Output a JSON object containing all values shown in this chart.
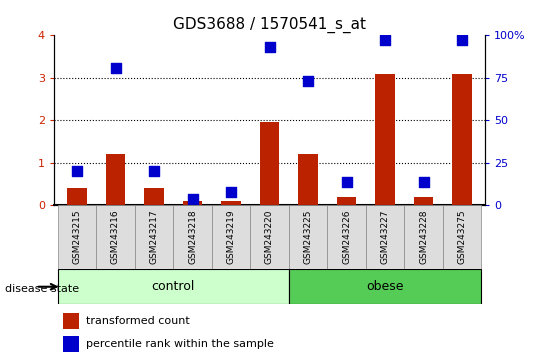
{
  "title": "GDS3688 / 1570541_s_at",
  "samples": [
    "GSM243215",
    "GSM243216",
    "GSM243217",
    "GSM243218",
    "GSM243219",
    "GSM243220",
    "GSM243225",
    "GSM243226",
    "GSM243227",
    "GSM243228",
    "GSM243275"
  ],
  "transformed_count": [
    0.4,
    1.2,
    0.4,
    0.1,
    0.1,
    1.95,
    1.2,
    0.2,
    3.1,
    0.2,
    3.1
  ],
  "percentile_rank_raw": [
    20,
    81,
    20,
    4,
    8,
    93,
    73,
    14,
    97,
    14,
    97
  ],
  "bar_color": "#bb2200",
  "dot_color": "#0000cc",
  "groups": [
    {
      "label": "control",
      "start": 0,
      "end": 6,
      "color": "#ccffcc"
    },
    {
      "label": "obese",
      "start": 6,
      "end": 11,
      "color": "#55cc55"
    }
  ],
  "ylim_left": [
    0,
    4
  ],
  "ylim_right": [
    0,
    100
  ],
  "yticks_left": [
    0,
    1,
    2,
    3,
    4
  ],
  "ytick_labels_left": [
    "0",
    "1",
    "2",
    "3",
    "4"
  ],
  "yticks_right": [
    0,
    25,
    50,
    75,
    100
  ],
  "ytick_labels_right": [
    "0",
    "25",
    "50",
    "75",
    "100%"
  ],
  "xlabel_disease": "disease state",
  "legend_items": [
    {
      "label": "transformed count",
      "color": "#bb2200"
    },
    {
      "label": "percentile rank within the sample",
      "color": "#0000cc"
    }
  ],
  "background_color": "#ffffff",
  "tick_label_color_left": "#cc2200",
  "tick_label_color_right": "#0000cc",
  "bar_width": 0.5,
  "dot_size": 55,
  "sample_box_color": "#dddddd",
  "sample_box_edge": "#888888"
}
